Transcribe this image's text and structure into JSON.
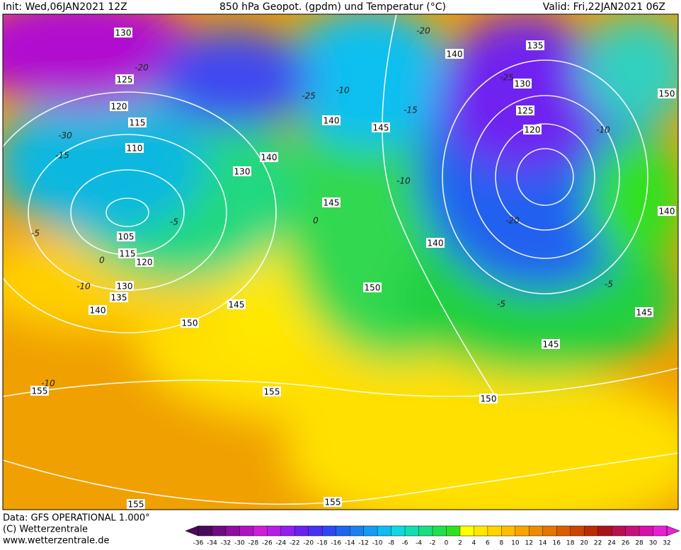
{
  "header": {
    "init": "Init: Wed,06JAN2021 12Z",
    "title": "850 hPa Geopot. (gpdm) und Temperatur (°C)",
    "valid": "Valid: Fri,22JAN2021 06Z"
  },
  "footer": {
    "data": "Data: GFS OPERATIONAL 1.000°",
    "copyright": "(C) Wetterzentrale",
    "url": "www.wetterzentrale.de"
  },
  "colorbar": {
    "ticks": [
      -36,
      -34,
      -32,
      -30,
      -28,
      -26,
      -24,
      -22,
      -20,
      -18,
      -16,
      -14,
      -12,
      -10,
      -8,
      -6,
      -4,
      -2,
      0,
      2,
      4,
      6,
      8,
      10,
      12,
      14,
      16,
      18,
      20,
      22,
      24,
      26,
      28,
      30,
      32
    ],
    "colors": [
      "#4a0a5a",
      "#6c0c7e",
      "#8e0ea0",
      "#b012c0",
      "#cc1ed8",
      "#b41ee8",
      "#901ef0",
      "#6a20f0",
      "#4a30f0",
      "#2c48f0",
      "#2064f0",
      "#1c80f0",
      "#149cf0",
      "#10bcf0",
      "#10d8e0",
      "#10e0b0",
      "#18e080",
      "#20e050",
      "#30e020",
      "#ffff00",
      "#ffe800",
      "#ffd400",
      "#ffbc00",
      "#f8a400",
      "#ee8c00",
      "#e67400",
      "#dc5c00",
      "#cc4400",
      "#bc2c00",
      "#aa1418",
      "#b8104c",
      "#c8107c",
      "#d810ac",
      "#e820d4"
    ]
  },
  "geopotential_labels": [
    130,
    125,
    120,
    115,
    110,
    105,
    115,
    120,
    130,
    135,
    140,
    150,
    155,
    155,
    155,
    155,
    150,
    150,
    145,
    145,
    145,
    140,
    140,
    130,
    140,
    135,
    130,
    125,
    120,
    150,
    140,
    140,
    145,
    145
  ],
  "temperature_labels": [
    -20,
    -25,
    -10,
    -15,
    -25,
    -10,
    -20,
    -5,
    -5,
    -10,
    -30,
    -15,
    -5,
    -5,
    0,
    -10,
    -10,
    0,
    -20
  ]
}
